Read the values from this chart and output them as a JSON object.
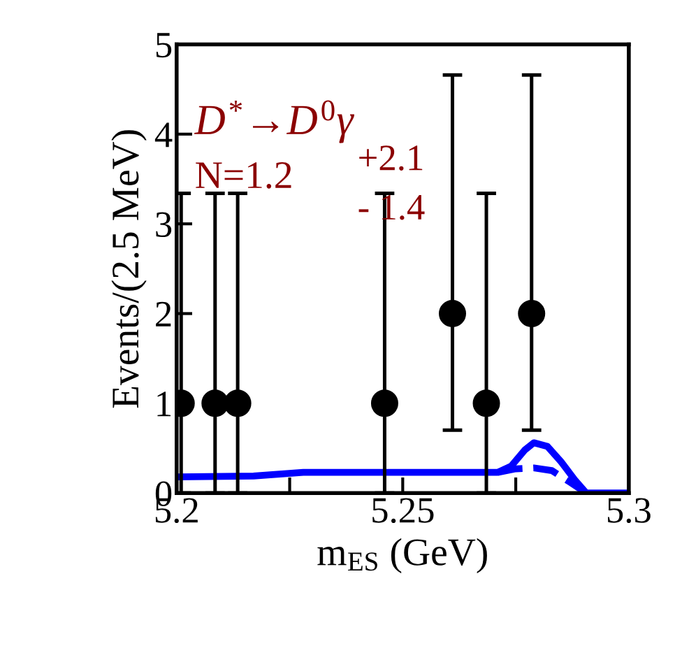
{
  "chart_data": {
    "type": "scatter",
    "xlabel": "m$_{ES}$ (GeV)",
    "ylabel": "Events/(2.5 MeV)",
    "annotations": [
      "D$^{*}$→D$^{0}$γ",
      "N=1.2",
      "+2.1",
      "- 1.4"
    ],
    "xlim": [
      5.2,
      5.3
    ],
    "xticks": [
      5.2,
      {
        "value": 5.225,
        "label": null
      },
      5.25,
      {
        "value": 5.275,
        "label": null
      },
      5.3
    ],
    "ylim": [
      0,
      5
    ],
    "yticks": [
      0,
      1,
      2,
      3,
      4,
      5
    ],
    "grid": false,
    "series": [
      {
        "color": "#000000",
        "marker": "circle",
        "x": [
          5.201,
          5.2085,
          5.2135,
          5.246,
          5.261,
          5.2685,
          5.2785
        ],
        "values": [
          1,
          1,
          1,
          1,
          2,
          1,
          2
        ],
        "errors": [
          [
            0,
            3.34
          ],
          [
            0,
            3.34
          ],
          [
            0,
            3.34
          ],
          [
            0,
            3.34
          ],
          [
            0.7,
            4.66
          ],
          [
            0,
            3.34
          ],
          [
            0.7,
            4.66
          ]
        ]
      },
      {
        "type": "line",
        "color": "#0000ff",
        "line_style": "solid",
        "x": [
          5.2,
          5.217,
          5.228,
          5.271,
          5.274,
          5.277,
          5.279,
          5.282,
          5.285,
          5.288,
          5.2906,
          5.3
        ],
        "values": [
          0.18,
          0.19,
          0.23,
          0.23,
          0.3,
          0.48,
          0.56,
          0.52,
          0.35,
          0.15,
          0.0,
          0.0
        ]
      },
      {
        "type": "line",
        "color": "#0000ff",
        "line_style": "dashed",
        "x": [
          5.271,
          5.275,
          5.279,
          5.283,
          5.287,
          5.2906
        ],
        "values": [
          0.23,
          0.27,
          0.28,
          0.25,
          0.12,
          0.0
        ]
      }
    ]
  }
}
